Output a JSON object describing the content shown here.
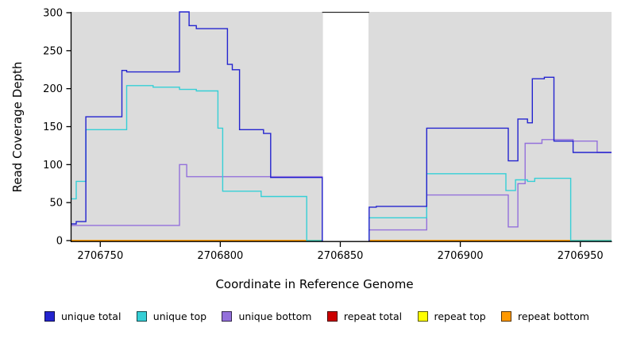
{
  "chart_data": {
    "type": "line",
    "subtype": "step-coverage",
    "title": "",
    "xlabel": "Coordinate in Reference Genome",
    "ylabel": "Read Coverage Depth",
    "xlim": [
      2706738,
      2706963
    ],
    "ylim": [
      0,
      300
    ],
    "xticks": [
      2706750,
      2706800,
      2706850,
      2706900,
      2706950
    ],
    "yticks": [
      0,
      50,
      100,
      150,
      200,
      250,
      300
    ],
    "grid": false,
    "legend_position": "bottom",
    "plot_background": "#dcdcdc",
    "page_background": "#ffffff",
    "axis_color": "#000000",
    "gap_band": {
      "x_start": 2706842.5,
      "x_end": 2706862,
      "color": "#ffffff",
      "top_line": true,
      "top_line_color": "#2a2a2a"
    },
    "series": [
      {
        "name": "unique total",
        "color": "#2424cf",
        "points": [
          [
            2706738,
            22
          ],
          [
            2706740,
            22
          ],
          [
            2706740,
            25
          ],
          [
            2706744,
            25
          ],
          [
            2706744,
            163
          ],
          [
            2706759,
            163
          ],
          [
            2706759,
            224
          ],
          [
            2706761,
            224
          ],
          [
            2706761,
            222
          ],
          [
            2706783,
            222
          ],
          [
            2706783,
            301
          ],
          [
            2706787,
            301
          ],
          [
            2706787,
            283
          ],
          [
            2706790,
            283
          ],
          [
            2706790,
            279
          ],
          [
            2706803,
            279
          ],
          [
            2706803,
            232
          ],
          [
            2706805,
            232
          ],
          [
            2706805,
            225
          ],
          [
            2706808,
            225
          ],
          [
            2706808,
            146
          ],
          [
            2706818,
            146
          ],
          [
            2706818,
            141
          ],
          [
            2706821,
            141
          ],
          [
            2706821,
            83
          ],
          [
            2706842.5,
            83
          ],
          [
            2706842.5,
            0
          ],
          [
            2706862,
            0
          ],
          [
            2706862,
            44
          ],
          [
            2706865,
            44
          ],
          [
            2706865,
            45
          ],
          [
            2706886,
            45
          ],
          [
            2706886,
            148
          ],
          [
            2706920,
            148
          ],
          [
            2706920,
            105
          ],
          [
            2706924,
            105
          ],
          [
            2706924,
            160
          ],
          [
            2706928,
            160
          ],
          [
            2706928,
            155
          ],
          [
            2706930,
            155
          ],
          [
            2706930,
            213
          ],
          [
            2706935,
            213
          ],
          [
            2706935,
            215
          ],
          [
            2706939,
            215
          ],
          [
            2706939,
            131
          ],
          [
            2706947,
            131
          ],
          [
            2706947,
            116
          ],
          [
            2706963,
            116
          ]
        ]
      },
      {
        "name": "unique top",
        "color": "#35cfd6",
        "points": [
          [
            2706738,
            55
          ],
          [
            2706740,
            55
          ],
          [
            2706740,
            78
          ],
          [
            2706744,
            78
          ],
          [
            2706744,
            146
          ],
          [
            2706761,
            146
          ],
          [
            2706761,
            204
          ],
          [
            2706772,
            204
          ],
          [
            2706772,
            202
          ],
          [
            2706783,
            202
          ],
          [
            2706783,
            199
          ],
          [
            2706790,
            199
          ],
          [
            2706790,
            197
          ],
          [
            2706799,
            197
          ],
          [
            2706799,
            148
          ],
          [
            2706801,
            148
          ],
          [
            2706801,
            65
          ],
          [
            2706817,
            65
          ],
          [
            2706817,
            58
          ],
          [
            2706836,
            58
          ],
          [
            2706836,
            0
          ],
          [
            2706862,
            0
          ],
          [
            2706862,
            30
          ],
          [
            2706886,
            30
          ],
          [
            2706886,
            88
          ],
          [
            2706919,
            88
          ],
          [
            2706919,
            66
          ],
          [
            2706923,
            66
          ],
          [
            2706923,
            80
          ],
          [
            2706928,
            80
          ],
          [
            2706928,
            78
          ],
          [
            2706931,
            78
          ],
          [
            2706931,
            82
          ],
          [
            2706946,
            82
          ],
          [
            2706946,
            0
          ],
          [
            2706963,
            0
          ]
        ]
      },
      {
        "name": "unique bottom",
        "color": "#9370db",
        "points": [
          [
            2706738,
            20
          ],
          [
            2706783,
            20
          ],
          [
            2706783,
            100
          ],
          [
            2706786,
            100
          ],
          [
            2706786,
            84
          ],
          [
            2706842.5,
            84
          ],
          [
            2706842.5,
            0
          ],
          [
            2706862,
            0
          ],
          [
            2706862,
            14
          ],
          [
            2706886,
            14
          ],
          [
            2706886,
            60
          ],
          [
            2706920,
            60
          ],
          [
            2706920,
            18
          ],
          [
            2706924,
            18
          ],
          [
            2706924,
            75
          ],
          [
            2706927,
            75
          ],
          [
            2706927,
            128
          ],
          [
            2706934,
            128
          ],
          [
            2706934,
            133
          ],
          [
            2706947,
            133
          ],
          [
            2706947,
            131
          ],
          [
            2706957,
            131
          ],
          [
            2706957,
            116
          ],
          [
            2706963,
            116
          ]
        ]
      },
      {
        "name": "repeat total",
        "color": "#cc0000",
        "points": [
          [
            2706738,
            0
          ],
          [
            2706963,
            0
          ]
        ]
      },
      {
        "name": "repeat top",
        "color": "#ffff00",
        "points": [
          [
            2706738,
            0
          ],
          [
            2706963,
            0
          ]
        ]
      },
      {
        "name": "repeat bottom",
        "color": "#ff9900",
        "points": [
          [
            2706738,
            0
          ],
          [
            2706963,
            0
          ]
        ]
      }
    ]
  }
}
